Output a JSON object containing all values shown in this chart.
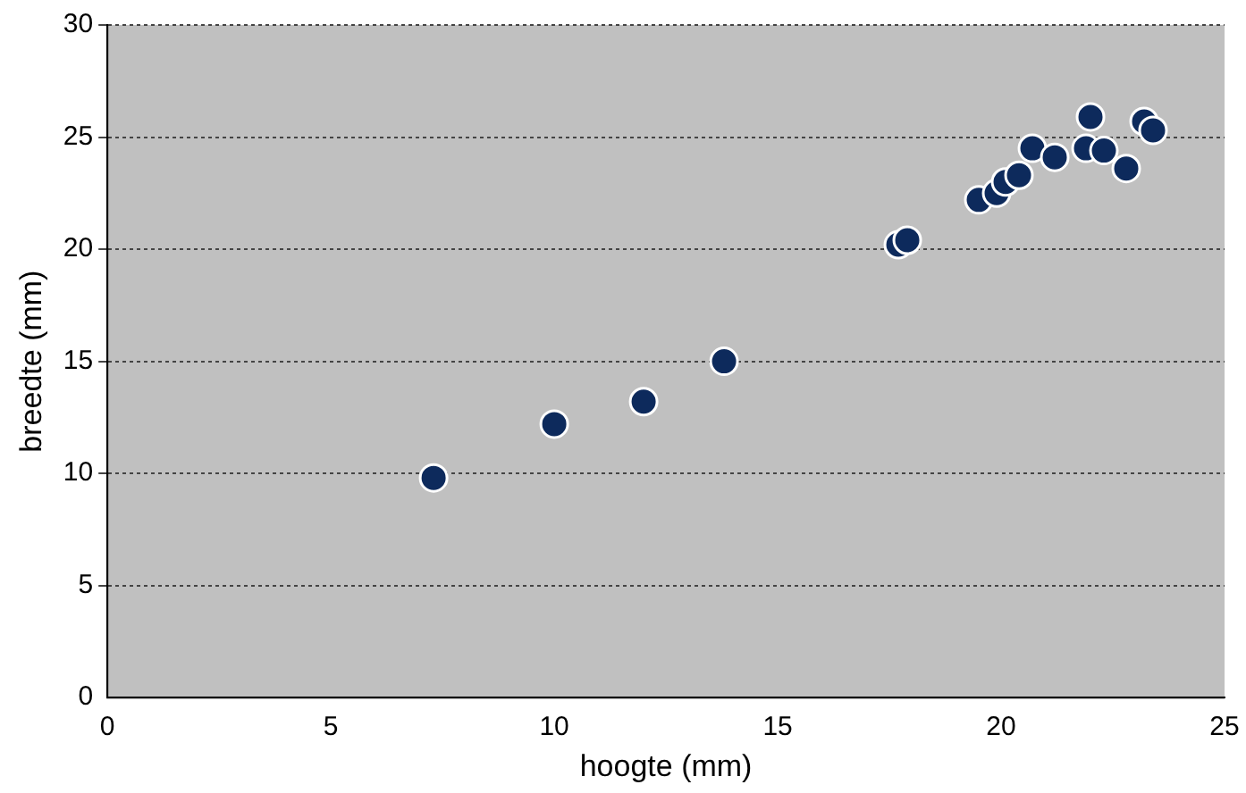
{
  "chart_data": {
    "type": "scatter",
    "xlabel": "hoogte (mm)",
    "ylabel": "breedte (mm)",
    "x": [
      7.3,
      10.0,
      12.0,
      13.8,
      17.7,
      17.9,
      19.5,
      19.9,
      20.1,
      20.4,
      20.7,
      21.2,
      21.9,
      22.0,
      22.3,
      22.8,
      23.2,
      23.4
    ],
    "series": [
      {
        "color": "#0d2a5c",
        "values": [
          9.8,
          12.2,
          13.2,
          15.0,
          20.2,
          20.4,
          22.2,
          22.5,
          23.0,
          23.3,
          24.5,
          24.1,
          24.5,
          25.9,
          24.4,
          23.6,
          25.7,
          25.3
        ]
      }
    ],
    "xlim": [
      0,
      25
    ],
    "xticks": [
      0,
      5,
      10,
      15,
      20,
      25
    ],
    "ylim": [
      0,
      30
    ],
    "yticks": [
      0,
      5,
      10,
      15,
      20,
      25,
      30
    ],
    "grid": "y",
    "marker": "circle",
    "legend": false
  }
}
